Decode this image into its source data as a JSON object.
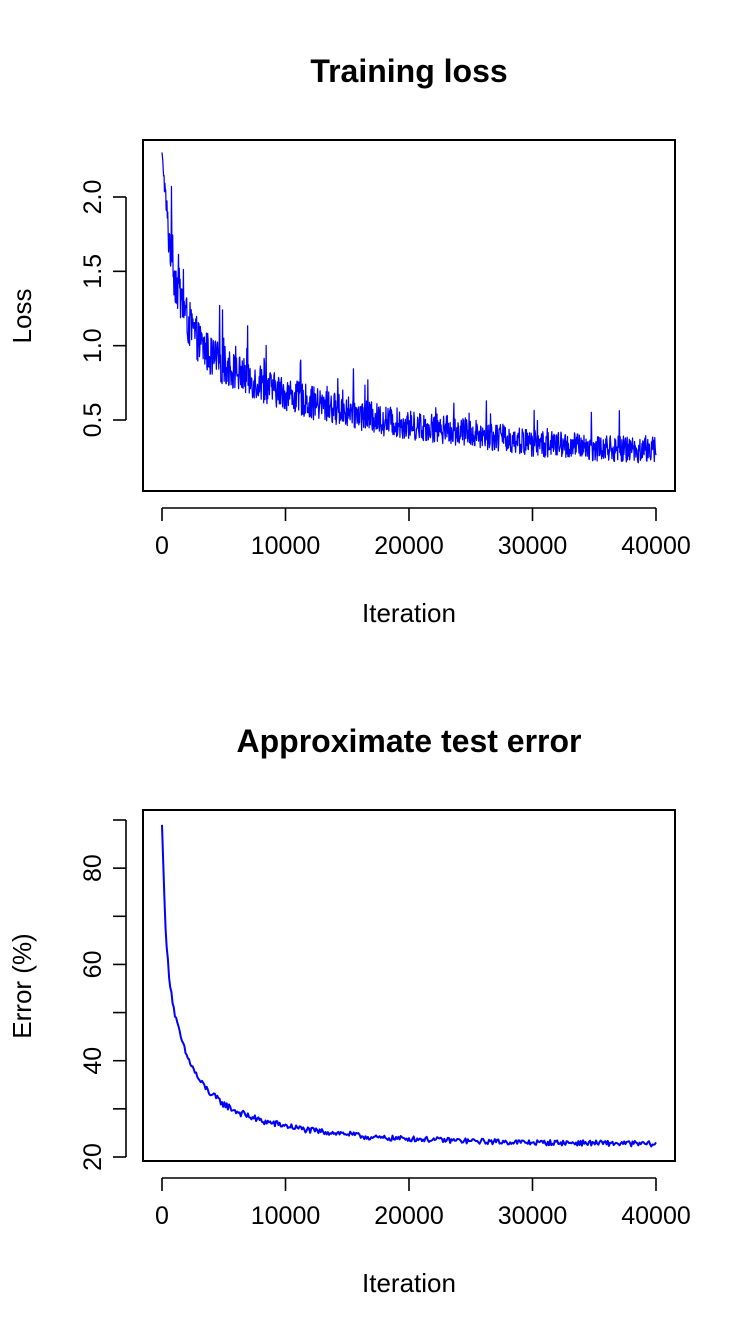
{
  "colors": {
    "series": "#0000ff",
    "axis": "#000000",
    "background": "#ffffff"
  },
  "chart_data": [
    {
      "type": "line",
      "title": "Training loss",
      "xlabel": "Iteration",
      "ylabel": "Loss",
      "xlim": [
        0,
        40000
      ],
      "ylim": [
        0.1,
        2.3
      ],
      "xticks": [
        0,
        10000,
        20000,
        30000,
        40000
      ],
      "yticks": [
        0.5,
        1.0,
        1.5,
        2.0
      ],
      "ytick_labels": [
        "0.5",
        "1.0",
        "1.5",
        "2.0"
      ],
      "grid": false,
      "legend": "none",
      "noisy": true,
      "series": [
        {
          "x": [
            0,
            500,
            1000,
            2000,
            3000,
            4000,
            5000,
            6000,
            8000,
            10000,
            12000,
            15000,
            18000,
            20000,
            25000,
            30000,
            35000,
            40000
          ],
          "y": [
            2.3,
            1.75,
            1.45,
            1.15,
            1.0,
            0.9,
            0.85,
            0.8,
            0.72,
            0.66,
            0.6,
            0.54,
            0.48,
            0.45,
            0.4,
            0.33,
            0.3,
            0.28
          ],
          "spread": [
            0.0,
            0.22,
            0.24,
            0.23,
            0.2,
            0.2,
            0.19,
            0.18,
            0.17,
            0.16,
            0.16,
            0.15,
            0.15,
            0.14,
            0.14,
            0.13,
            0.13,
            0.13
          ]
        }
      ]
    },
    {
      "type": "line",
      "title": "Approximate test error",
      "xlabel": "Iteration",
      "ylabel": "Error (%)",
      "xlim": [
        0,
        40000
      ],
      "ylim": [
        20,
        90
      ],
      "xticks": [
        0,
        10000,
        20000,
        30000,
        40000
      ],
      "yticks": [
        20,
        30,
        40,
        50,
        60,
        70,
        80,
        90
      ],
      "ytick_labels": [
        "20",
        "",
        "40",
        "",
        "60",
        "",
        "80",
        ""
      ],
      "grid": false,
      "legend": "none",
      "noisy": false,
      "series": [
        {
          "x": [
            0,
            300,
            600,
            1000,
            1500,
            2000,
            3000,
            4000,
            5000,
            6000,
            8000,
            10000,
            12000,
            15000,
            17000,
            20000,
            25000,
            30000,
            35000,
            40000
          ],
          "y": [
            89,
            66,
            57,
            50,
            45,
            41,
            36,
            33,
            31,
            29.5,
            27.5,
            26.5,
            25.5,
            24.8,
            24,
            23.8,
            23.3,
            23,
            22.9,
            22.7
          ],
          "spread": [
            0,
            0.8,
            0.8,
            0.8,
            0.8,
            0.8,
            0.8,
            0.9,
            0.9,
            0.9,
            0.9,
            0.8,
            0.8,
            0.7,
            0.7,
            0.7,
            0.7,
            0.7,
            0.7,
            0.7
          ]
        }
      ]
    }
  ]
}
